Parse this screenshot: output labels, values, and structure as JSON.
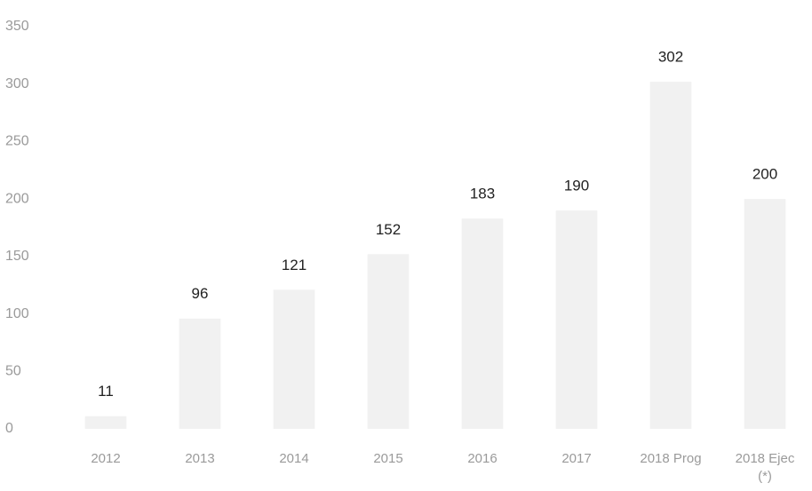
{
  "chart_data": {
    "type": "bar",
    "categories": [
      "2012",
      "2013",
      "2014",
      "2015",
      "2016",
      "2017",
      "2018 Prog",
      "2018 Ejec (*)"
    ],
    "values": [
      11,
      96,
      121,
      152,
      183,
      190,
      302,
      200
    ],
    "color": "#f1f1f1",
    "ylim": [
      0,
      350
    ],
    "yticks": [
      0,
      50,
      100,
      150,
      200,
      250,
      300,
      350
    ],
    "grid": false
  }
}
